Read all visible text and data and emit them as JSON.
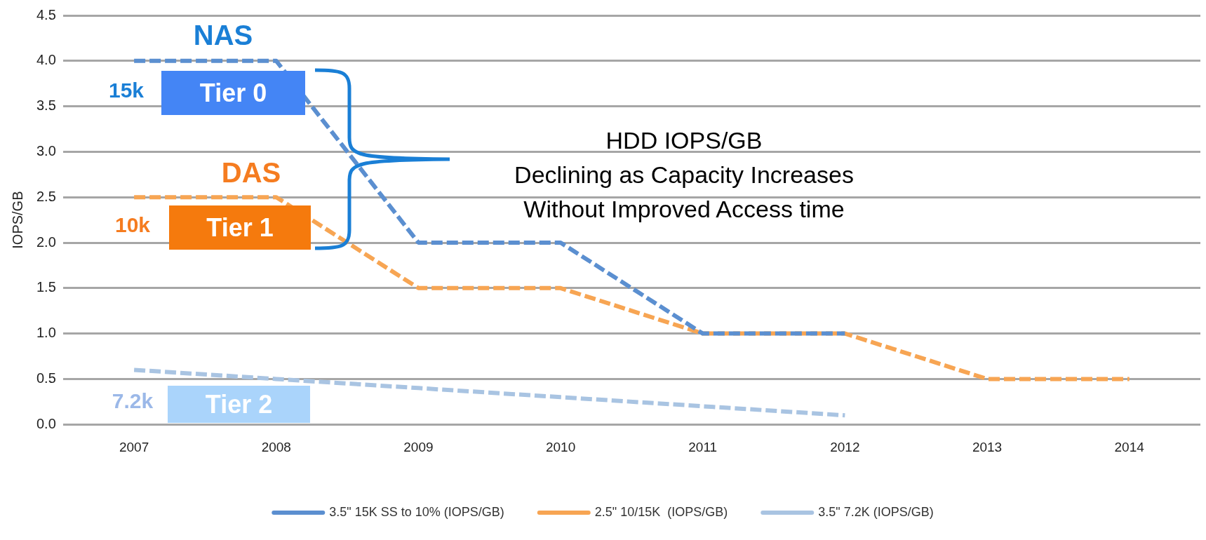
{
  "chart_data": {
    "type": "line",
    "ylabel": "IOPS/GB",
    "categories": [
      "2007",
      "2008",
      "2009",
      "2010",
      "2011",
      "2012",
      "2013",
      "2014"
    ],
    "series": [
      {
        "name": "3.5\" 15K SS to 10% (IOPS/GB)",
        "color": "#5b8fd0",
        "values": [
          4.0,
          4.0,
          2.0,
          2.0,
          1.0,
          1.0,
          null,
          null
        ]
      },
      {
        "name": "2.5\" 10/15K  (IOPS/GB)",
        "color": "#f7a553",
        "values": [
          2.5,
          2.5,
          1.5,
          1.5,
          1.0,
          1.0,
          0.5,
          0.5
        ]
      },
      {
        "name": "3.5\" 7.2K (IOPS/GB)",
        "color": "#a9c4e2",
        "values": [
          0.6,
          0.5,
          0.4,
          0.3,
          0.2,
          0.1,
          null,
          null
        ]
      }
    ],
    "ylim": [
      0,
      4.5
    ],
    "yticks": [
      {
        "value": 0,
        "label": "0.0"
      },
      {
        "value": 0.5,
        "label": "0.5"
      },
      {
        "value": 1,
        "label": "1.0"
      },
      {
        "value": 1.5,
        "label": "1.5"
      },
      {
        "value": 2,
        "label": "2.0"
      },
      {
        "value": 2.5,
        "label": "2.5"
      },
      {
        "value": 3,
        "label": "3.0"
      },
      {
        "value": 3.5,
        "label": "3.5"
      },
      {
        "value": 4,
        "label": "4.0"
      },
      {
        "value": 4.5,
        "label": "4.5"
      }
    ],
    "grid": "y",
    "legend": "bottom",
    "marker": "none",
    "line_style": "dashed",
    "annotations": [
      "NAS",
      "15k",
      "Tier 0",
      "DAS",
      "10k",
      "Tier 1",
      "7.2k",
      "Tier 2",
      "HDD IOPS/GB",
      "Declining as Capacity Increases",
      "Without Improved Access time"
    ]
  }
}
